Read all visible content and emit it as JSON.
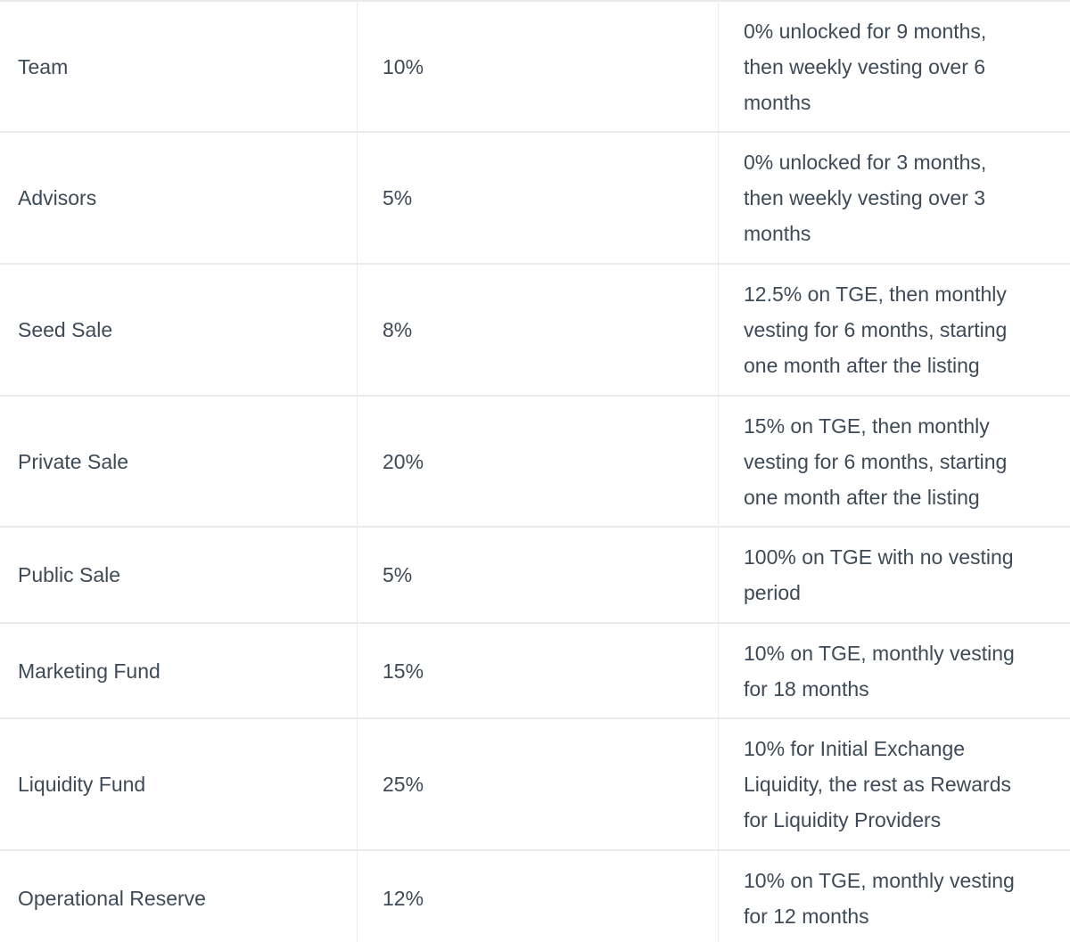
{
  "table": {
    "colors": {
      "text": "#3e4a57",
      "border": "#e7ebee",
      "background": "#ffffff"
    },
    "rows": [
      {
        "category": "Team",
        "allocation": "10%",
        "vesting": [
          "0% unlocked for 9 months,",
          "then weekly vesting over 6",
          "months"
        ]
      },
      {
        "category": "Advisors",
        "allocation": "5%",
        "vesting": [
          "0% unlocked for 3 months,",
          "then weekly vesting over 3",
          "months"
        ]
      },
      {
        "category": "Seed Sale",
        "allocation": "8%",
        "vesting": [
          "12.5% on TGE, then monthly",
          "vesting for 6 months, starting",
          "one month after the listing"
        ]
      },
      {
        "category": "Private Sale",
        "allocation": "20%",
        "vesting": [
          "15% on TGE, then monthly",
          "vesting for 6 months, starting",
          "one month after the listing"
        ]
      },
      {
        "category": "Public Sale",
        "allocation": "5%",
        "vesting": [
          "100% on TGE with no vesting",
          "period"
        ]
      },
      {
        "category": "Marketing Fund",
        "allocation": "15%",
        "vesting": [
          "10% on TGE, monthly vesting",
          "for 18 months"
        ]
      },
      {
        "category": "Liquidity Fund",
        "allocation": "25%",
        "vesting": [
          "10% for Initial Exchange",
          "Liquidity, the rest as Rewards",
          "for Liquidity Providers"
        ]
      },
      {
        "category": "Operational Reserve",
        "allocation": "12%",
        "vesting": [
          "10% on TGE, monthly vesting",
          "for 12 months"
        ]
      }
    ]
  }
}
